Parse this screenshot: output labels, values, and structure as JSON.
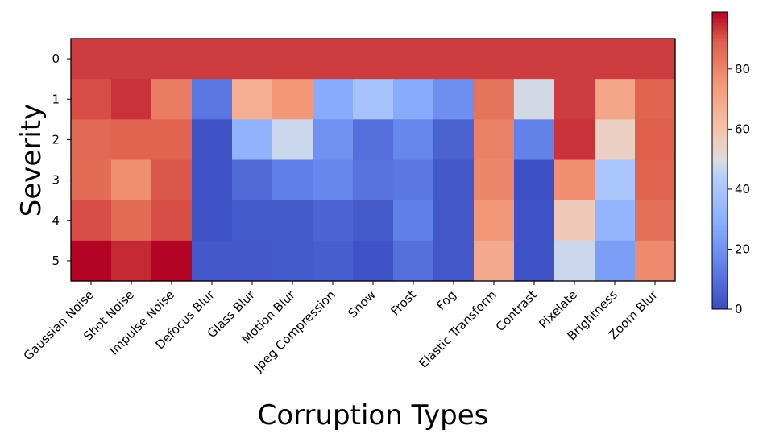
{
  "chart_data": {
    "type": "heatmap",
    "xlabel": "Corruption Types",
    "ylabel": "Severity",
    "x_categories": [
      "Gaussian Noise",
      "Shot Noise",
      "Impulse Noise",
      "Defocus Blur",
      "Glass Blur",
      "Motion Blur",
      "Jpeg Compression",
      "Snow",
      "Frost",
      "Fog",
      "Elastic Transform",
      "Contrast",
      "Pixelate",
      "Brightness",
      "Zoom Blur"
    ],
    "y_categories": [
      "0",
      "1",
      "2",
      "3",
      "4",
      "5"
    ],
    "values": [
      [
        93,
        93,
        93,
        93,
        93,
        93,
        93,
        93,
        93,
        93,
        93,
        93,
        93,
        93,
        93
      ],
      [
        91,
        94,
        82,
        12,
        67,
        75,
        28,
        38,
        28,
        19,
        84,
        48,
        93,
        70,
        88
      ],
      [
        87,
        88,
        88,
        2,
        31,
        47,
        20,
        10,
        16,
        6,
        81,
        15,
        94,
        55,
        89
      ],
      [
        86,
        77,
        90,
        2,
        8,
        14,
        16,
        11,
        12,
        3,
        79,
        1,
        77,
        40,
        88
      ],
      [
        91,
        86,
        91,
        2,
        4,
        4,
        7,
        4,
        14,
        3,
        75,
        2,
        57,
        32,
        85
      ],
      [
        99,
        95,
        99,
        3,
        3,
        4,
        5,
        2,
        10,
        3,
        69,
        2,
        47,
        24,
        78
      ]
    ],
    "colormap": "coolwarm",
    "colorbar": {
      "min": 0,
      "max": 99,
      "ticks": [
        "0",
        "20",
        "40",
        "60",
        "80"
      ]
    },
    "grid": false,
    "legend": "none"
  }
}
